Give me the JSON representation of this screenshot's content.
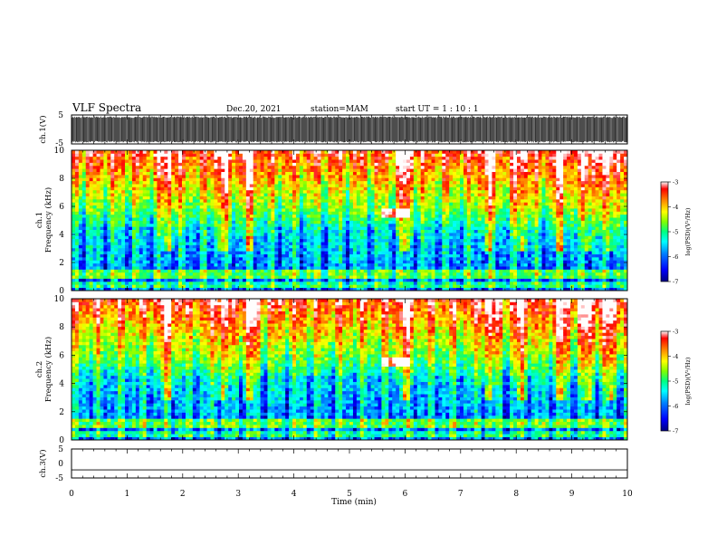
{
  "header": {
    "title": "VLF Spectra",
    "date": "Dec.20, 2021",
    "station": "station=MAM",
    "start": "start UT =  1 : 10 : 1"
  },
  "chart_data": [
    {
      "type": "line",
      "panel": "ch1-waveform",
      "ylabel": "ch.1(V)",
      "ylim": [
        -5,
        5
      ],
      "y_ticks": [
        "5",
        "-5"
      ],
      "xlim": [
        0,
        10
      ],
      "description_values": "dense oscillating waveform spanning approximately -4.5 to 4.5 V",
      "series": [
        {
          "values_range": [
            -4.5,
            4.5
          ]
        }
      ]
    },
    {
      "type": "heatmap",
      "panel": "ch1-spectrogram",
      "ylabel_line1": "ch.1",
      "ylabel_line2": "Frequency (kHz)",
      "xlim": [
        0,
        10
      ],
      "ylim": [
        0,
        10
      ],
      "y_ticks": [
        "0",
        "2",
        "4",
        "6",
        "8",
        "10"
      ],
      "colorbar": {
        "label": "log(PSD)(V²/Hz)",
        "range": [
          -7,
          -3
        ],
        "ticks": [
          "-3",
          "-4",
          "-5",
          "-6",
          "-7"
        ]
      },
      "whistler_features_min": [
        1.75,
        2.7,
        3.2,
        6.0,
        7.5,
        8.1,
        8.8,
        9.3,
        9.7
      ],
      "emission_band_khz": [
        5.3,
        5.9
      ],
      "emission_band_min": [
        5.6,
        6.1
      ]
    },
    {
      "type": "heatmap",
      "panel": "ch2-spectrogram",
      "ylabel_line1": "ch.2",
      "ylabel_line2": "Frequency (kHz)",
      "xlim": [
        0,
        10
      ],
      "ylim": [
        0,
        10
      ],
      "y_ticks": [
        "0",
        "2",
        "4",
        "6",
        "8",
        "10"
      ],
      "colorbar": {
        "label": "log(PSD)(V²/Hz)",
        "range": [
          -7,
          -3
        ],
        "ticks": [
          "-3",
          "-4",
          "-5",
          "-6",
          "-7"
        ]
      },
      "whistler_features_min": [
        1.75,
        2.7,
        3.2,
        6.0,
        7.5,
        8.1,
        8.8,
        9.3,
        9.7
      ],
      "emission_band_khz": [
        5.3,
        5.9
      ],
      "emission_band_min": [
        5.6,
        6.1
      ]
    },
    {
      "type": "line",
      "panel": "ch3-waveform",
      "ylabel": "ch.3(V)",
      "ylim": [
        -5,
        5
      ],
      "y_ticks": [
        "5",
        "0",
        "-5"
      ],
      "xlim": [
        0,
        10
      ],
      "x_ticks": [
        "0",
        "1",
        "2",
        "3",
        "4",
        "5",
        "6",
        "7",
        "8",
        "9",
        "10"
      ],
      "xlabel": "Time (min)",
      "series": [
        {
          "x": [
            0,
            10
          ],
          "values": [
            -2.2,
            -2.2
          ]
        }
      ]
    }
  ],
  "colors": {
    "colormap": [
      "#00007f",
      "#0000ff",
      "#0080ff",
      "#00ffff",
      "#00ff80",
      "#80ff00",
      "#ffff00",
      "#ff8000",
      "#ff0000",
      "#ffffff"
    ]
  }
}
